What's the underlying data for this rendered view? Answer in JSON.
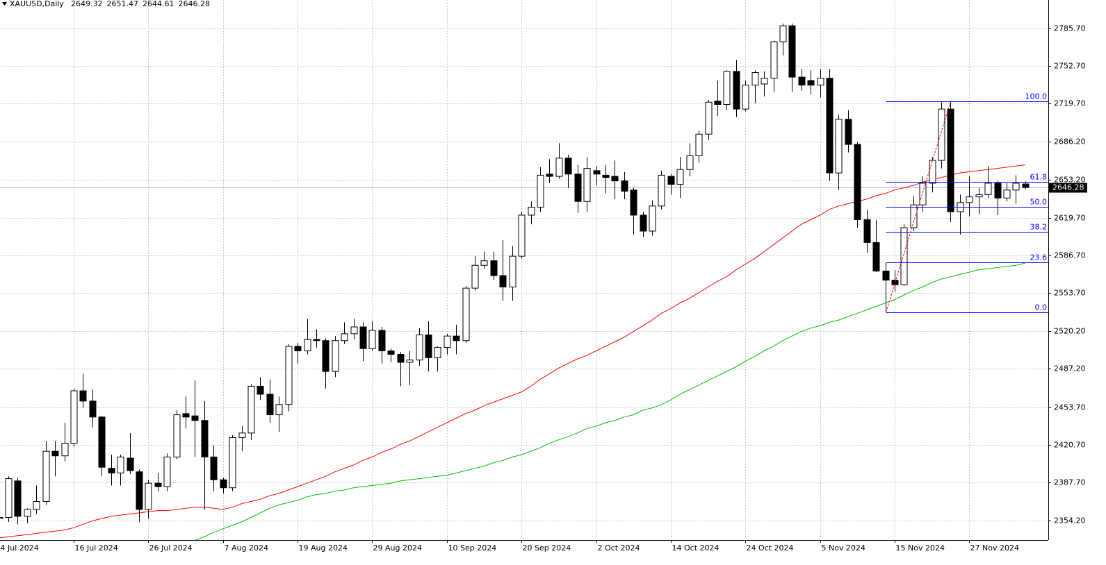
{
  "chart_data": {
    "type": "candlestick",
    "title": "XAUUSD,Daily",
    "categories": [
      "4 Jul 2024",
      null,
      null,
      null,
      null,
      null,
      null,
      null,
      "16 Jul 2024",
      null,
      null,
      null,
      null,
      null,
      null,
      null,
      "26 Jul 2024",
      null,
      null,
      null,
      null,
      null,
      null,
      null,
      "7 Aug 2024",
      null,
      null,
      null,
      null,
      null,
      null,
      null,
      "19 Aug 2024",
      null,
      null,
      null,
      null,
      null,
      null,
      null,
      "29 Aug 2024",
      null,
      null,
      null,
      null,
      null,
      null,
      null,
      "10 Sep 2024",
      null,
      null,
      null,
      null,
      null,
      null,
      null,
      "20 Sep 2024",
      null,
      null,
      null,
      null,
      null,
      null,
      null,
      "2 Oct 2024",
      null,
      null,
      null,
      null,
      null,
      null,
      null,
      "14 Oct 2024",
      null,
      null,
      null,
      null,
      null,
      null,
      null,
      "24 Oct 2024",
      null,
      null,
      null,
      null,
      null,
      null,
      null,
      "5 Nov 2024",
      null,
      null,
      null,
      null,
      null,
      null,
      null,
      "15 Nov 2024",
      null,
      null,
      null,
      null,
      null,
      null,
      null,
      "27 Nov 2024",
      null,
      null,
      null,
      null,
      null,
      null
    ],
    "open": [
      2356,
      2357,
      2389,
      2358,
      2364,
      2371,
      2415,
      2411,
      2422,
      2468,
      2459,
      2445,
      2400,
      2396,
      2409,
      2397,
      2364,
      2387,
      2384,
      2410,
      2448,
      2446,
      2442,
      2410,
      2390,
      2383,
      2427,
      2431,
      2472,
      2465,
      2447,
      2456,
      2507,
      2503,
      2513,
      2512,
      2485,
      2512,
      2518,
      2524,
      2505,
      2521,
      2503,
      2500,
      2493,
      2495,
      2517,
      2497,
      2506,
      2516,
      2512,
      2558,
      2578,
      2582,
      2569,
      2559,
      2586,
      2622,
      2629,
      2658,
      2656,
      2672,
      2658,
      2634,
      2661,
      2657,
      2656,
      2652,
      2644,
      2622,
      2608,
      2630,
      2656,
      2649,
      2662,
      2674,
      2693,
      2722,
      2719,
      2748,
      2715,
      2736,
      2737,
      2742,
      2774,
      2788,
      2743,
      2740,
      2736,
      2742,
      2659,
      2706,
      2684,
      2618,
      2598,
      2573,
      2565,
      2561,
      2611,
      2631,
      2650,
      2670,
      2715,
      2625,
      2633,
      2638,
      2640,
      2650,
      2637,
      2644,
      2649.32
    ],
    "high": [
      2363,
      2393,
      2392,
      2365,
      2385,
      2424,
      2424,
      2440,
      2470,
      2483,
      2469,
      2446,
      2412,
      2412,
      2431,
      2399,
      2390,
      2396,
      2413,
      2451,
      2463,
      2477,
      2459,
      2420,
      2392,
      2429,
      2437,
      2474,
      2480,
      2478,
      2463,
      2509,
      2510,
      2531,
      2522,
      2514,
      2516,
      2528,
      2531,
      2528,
      2529,
      2524,
      2505,
      2502,
      2503,
      2523,
      2529,
      2507,
      2518,
      2526,
      2560,
      2586,
      2590,
      2590,
      2600,
      2595,
      2625,
      2634,
      2664,
      2671,
      2685,
      2675,
      2666,
      2673,
      2665,
      2666,
      2670,
      2660,
      2646,
      2625,
      2635,
      2661,
      2658,
      2673,
      2685,
      2696,
      2723,
      2740,
      2749,
      2758,
      2740,
      2749,
      2748,
      2775,
      2790,
      2790,
      2750,
      2749,
      2750,
      2750,
      2710,
      2714,
      2686,
      2627,
      2618,
      2580,
      2574,
      2614,
      2639,
      2656,
      2673,
      2721,
      2721.8,
      2640,
      2656,
      2646,
      2665,
      2652,
      2650,
      2657,
      2651.47
    ],
    "low": [
      2353,
      2353,
      2351,
      2352,
      2360,
      2368,
      2393,
      2406,
      2419,
      2453,
      2436,
      2393,
      2385,
      2385,
      2395,
      2353,
      2356,
      2380,
      2380,
      2408,
      2435,
      2410,
      2364,
      2380,
      2378,
      2380,
      2415,
      2425,
      2460,
      2440,
      2432,
      2450,
      2492,
      2500,
      2506,
      2470,
      2480,
      2509,
      2513,
      2494,
      2503,
      2492,
      2493,
      2472,
      2473,
      2490,
      2485,
      2485,
      2500,
      2500,
      2510,
      2556,
      2575,
      2565,
      2547,
      2547,
      2584,
      2614,
      2625,
      2650,
      2654,
      2646,
      2624,
      2625,
      2648,
      2641,
      2636,
      2636,
      2605,
      2603,
      2604,
      2627,
      2640,
      2637,
      2656,
      2668,
      2688,
      2709,
      2714,
      2708,
      2713,
      2720,
      2726,
      2730,
      2762,
      2730,
      2731,
      2728,
      2725,
      2652,
      2644,
      2677,
      2611,
      2589,
      2572,
      2536.8,
      2555,
      2560,
      2608,
      2625,
      2642,
      2663,
      2616,
      2605,
      2621,
      2623,
      2637,
      2622,
      2634,
      2632,
      2644.61
    ],
    "close": [
      2357,
      2391,
      2358,
      2364,
      2371,
      2415,
      2411,
      2422,
      2468,
      2459,
      2445,
      2401,
      2396,
      2410,
      2398,
      2364,
      2387,
      2384,
      2410,
      2447,
      2445,
      2442,
      2410,
      2390,
      2383,
      2427,
      2431,
      2472,
      2465,
      2447,
      2456,
      2507,
      2503,
      2513,
      2512,
      2485,
      2512,
      2518,
      2524,
      2505,
      2521,
      2503,
      2500,
      2493,
      2495,
      2517,
      2497,
      2506,
      2516,
      2512,
      2558,
      2578,
      2582,
      2569,
      2559,
      2586,
      2622,
      2629,
      2657,
      2656,
      2672,
      2658,
      2634,
      2663,
      2658,
      2655,
      2652,
      2643,
      2622,
      2608,
      2630,
      2657,
      2649,
      2662,
      2674,
      2693,
      2721,
      2719,
      2748,
      2715,
      2736,
      2747,
      2742,
      2774,
      2788,
      2743,
      2736,
      2736,
      2742,
      2659,
      2706,
      2684,
      2618,
      2598,
      2573,
      2565,
      2561,
      2611,
      2631,
      2650,
      2670,
      2715,
      2625,
      2633,
      2638,
      2640,
      2650,
      2637,
      2644,
      2650,
      2646.28
    ],
    "up_color": "#ffffff",
    "down_color": "#000000",
    "moving_averages": [
      {
        "color": "#ff0000",
        "values": [
          2339,
          2340,
          2341,
          2342,
          2343,
          2344,
          2345,
          2346,
          2348,
          2351,
          2354,
          2356,
          2358,
          2359,
          2360,
          2361,
          2362,
          2363,
          2363,
          2364,
          2365,
          2366,
          2366,
          2365,
          2364,
          2366,
          2369,
          2371,
          2373,
          2376,
          2378,
          2381,
          2384,
          2387,
          2390,
          2393,
          2397,
          2400,
          2403,
          2407,
          2410,
          2414,
          2417,
          2421,
          2424,
          2428,
          2432,
          2436,
          2440,
          2444,
          2448,
          2451,
          2455,
          2458,
          2461,
          2464,
          2467,
          2472,
          2478,
          2483,
          2488,
          2492,
          2496,
          2499,
          2503,
          2507,
          2511,
          2515,
          2520,
          2525,
          2530,
          2536,
          2540,
          2545,
          2549,
          2554,
          2559,
          2564,
          2568,
          2574,
          2579,
          2584,
          2590,
          2596,
          2602,
          2608,
          2614,
          2618,
          2622,
          2627,
          2630,
          2632,
          2634,
          2636,
          2639,
          2641,
          2644,
          2646,
          2648,
          2651,
          2653,
          2655,
          2657,
          2659,
          2660,
          2661,
          2662,
          2663,
          2664,
          2665,
          2666
        ]
      },
      {
        "color": "#00c000",
        "values": [
          null,
          null,
          null,
          null,
          null,
          null,
          null,
          null,
          null,
          null,
          null,
          null,
          null,
          null,
          null,
          null,
          null,
          null,
          null,
          null,
          null,
          2337,
          2340,
          2344,
          2347,
          2350,
          2353,
          2357,
          2361,
          2365,
          2368,
          2370,
          2372,
          2375,
          2377,
          2378,
          2380,
          2381,
          2383,
          2384,
          2385,
          2386,
          2387,
          2389,
          2390,
          2391,
          2392,
          2393,
          2394,
          2396,
          2398,
          2400,
          2402,
          2405,
          2407,
          2410,
          2412,
          2415,
          2418,
          2422,
          2425,
          2428,
          2431,
          2435,
          2437,
          2440,
          2442,
          2445,
          2447,
          2451,
          2453,
          2456,
          2460,
          2465,
          2469,
          2473,
          2477,
          2481,
          2485,
          2489,
          2494,
          2498,
          2503,
          2507,
          2512,
          2516,
          2520,
          2523,
          2525,
          2528,
          2530,
          2533,
          2536,
          2539,
          2542,
          2545,
          2548,
          2552,
          2556,
          2559,
          2563,
          2566,
          2568,
          2570,
          2572,
          2574,
          2575,
          2576,
          2577,
          2578,
          2580
        ]
      }
    ],
    "fibonacci": {
      "color": "#0000ff",
      "trend_color": "#ff0000",
      "high": 2721.8,
      "low": 2536.8,
      "levels": [
        {
          "value": 100,
          "label": "100.0"
        },
        61.8,
        {
          "value": 50,
          "label": "50.0"
        },
        38.2,
        23.6,
        {
          "value": 0,
          "label": "0.0"
        }
      ]
    },
    "ylim": [
      2337.2,
      2810.6
    ],
    "yticks": [
      {
        "value": 2354.2,
        "label": "2354.20"
      },
      {
        "value": 2387.7,
        "label": "2387.70"
      },
      {
        "value": 2420.7,
        "label": "2420.70"
      },
      {
        "value": 2453.7,
        "label": "2453.70"
      },
      {
        "value": 2487.2,
        "label": "2487.20"
      },
      {
        "value": 2520.2,
        "label": "2520.20"
      },
      {
        "value": 2553.7,
        "label": "2553.70"
      },
      {
        "value": 2586.7,
        "label": "2586.70"
      },
      {
        "value": 2619.7,
        "label": "2619.70"
      },
      {
        "value": 2653.2,
        "label": "2653.20"
      },
      {
        "value": 2686.2,
        "label": "2686.20"
      },
      {
        "value": 2719.7,
        "label": "2719.70"
      },
      {
        "value": 2752.7,
        "label": "2752.70"
      },
      {
        "value": 2785.7,
        "label": "2785.70"
      }
    ],
    "grid": true
  }
}
